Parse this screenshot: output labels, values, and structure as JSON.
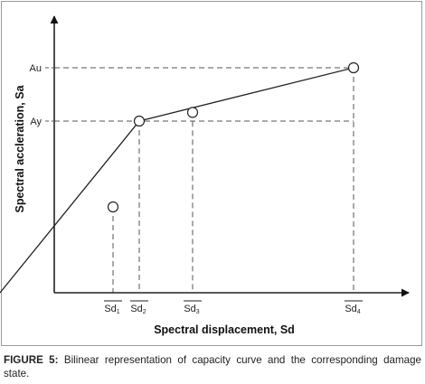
{
  "chart_data": {
    "type": "line",
    "x_ticks": [
      {
        "base": "Sd",
        "sub": "1"
      },
      {
        "base": "Sd",
        "sub": "2"
      },
      {
        "base": "Sd",
        "sub": "3"
      },
      {
        "base": "Sd",
        "sub": "4"
      }
    ],
    "y_ticks": [
      "Ay",
      "Au"
    ],
    "curve": [
      {
        "x": 0,
        "y": 0
      },
      {
        "x": 2,
        "y": 1
      },
      {
        "x": 4,
        "y": 1.43
      }
    ],
    "markers": [
      {
        "x": 1,
        "y": 0.5
      },
      {
        "x": 2,
        "y": 1
      },
      {
        "x": 3,
        "y": 1.07
      },
      {
        "x": 4,
        "y": 1.43
      }
    ],
    "y_levels": [
      1,
      1.43
    ],
    "xlabel": "Spectral displacement, Sd",
    "ylabel": "Spectral accleration, Sa"
  },
  "caption": {
    "label": "FIGURE 5:",
    "text": " Bilinear representation of capacity curve and the corresponding damage state."
  }
}
